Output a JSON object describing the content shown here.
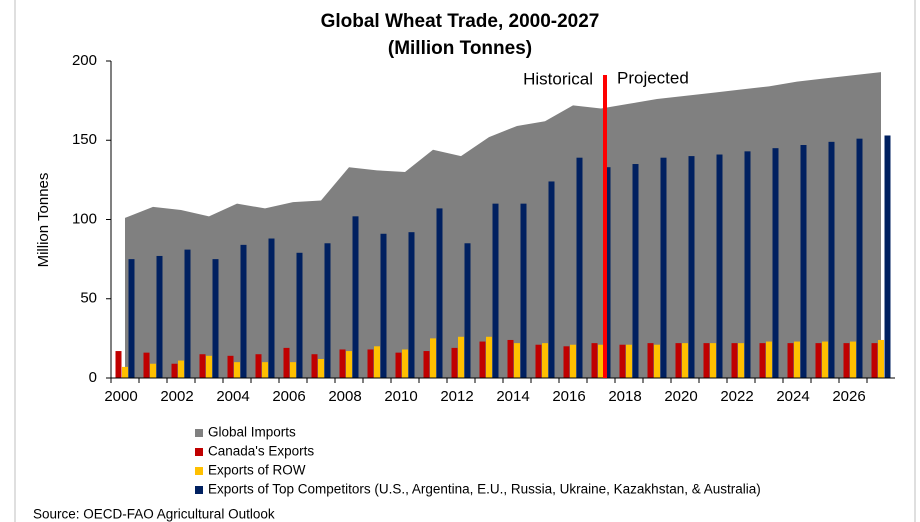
{
  "chart_data": {
    "type": "bar",
    "title": "Global Wheat Trade, 2000-2027",
    "subtitle": "(Million Tonnes)",
    "y_label": "Million Tonnes",
    "source": "Source: OECD-FAO Agricultural Outlook",
    "annotations": [
      "Historical",
      "Projected"
    ],
    "categories": [
      "2000",
      null,
      "2002",
      null,
      "2004",
      null,
      "2006",
      null,
      "2008",
      null,
      "2010",
      null,
      "2012",
      null,
      "2014",
      null,
      "2016",
      null,
      "2018",
      null,
      "2020",
      null,
      "2022",
      null,
      "2024",
      null,
      "2026",
      null
    ],
    "series": [
      {
        "name": "Global Imports",
        "type": "area",
        "color": "#808080",
        "values": [
          101,
          108,
          106,
          102,
          110,
          107,
          111,
          112,
          133,
          131,
          130,
          144,
          140,
          152,
          159,
          162,
          172,
          170,
          173,
          176,
          178,
          180,
          182,
          184,
          187,
          189,
          191,
          193
        ]
      },
      {
        "name": "Canada's Exports",
        "type": "bar",
        "color": "#c00000",
        "values": [
          17,
          16,
          9,
          15,
          14,
          15,
          19,
          15,
          18,
          18,
          16,
          17,
          19,
          23,
          24,
          21,
          20,
          22,
          21,
          22,
          22,
          22,
          22,
          22,
          22,
          22,
          22,
          22
        ]
      },
      {
        "name": "Exports of ROW",
        "type": "bar",
        "color": "#ffc000",
        "values": [
          7,
          9,
          11,
          14,
          10,
          10,
          10,
          12,
          17,
          20,
          18,
          25,
          26,
          26,
          22,
          22,
          21,
          21,
          21,
          21,
          22,
          22,
          22,
          23,
          23,
          23,
          23,
          24
        ]
      },
      {
        "name": "Exports of Top Competitors (U.S., Argentina, E.U., Russia, Ukraine, Kazakhstan, & Australia)",
        "type": "bar",
        "color": "#002060",
        "values": [
          75,
          77,
          81,
          75,
          84,
          88,
          79,
          85,
          102,
          91,
          92,
          107,
          85,
          110,
          110,
          124,
          139,
          133,
          135,
          139,
          140,
          141,
          143,
          145,
          147,
          149,
          151,
          153
        ]
      }
    ],
    "ylim": [
      0,
      200
    ],
    "yticks": [
      0,
      50,
      100,
      150,
      200
    ],
    "divider_color": "#ff0000"
  }
}
